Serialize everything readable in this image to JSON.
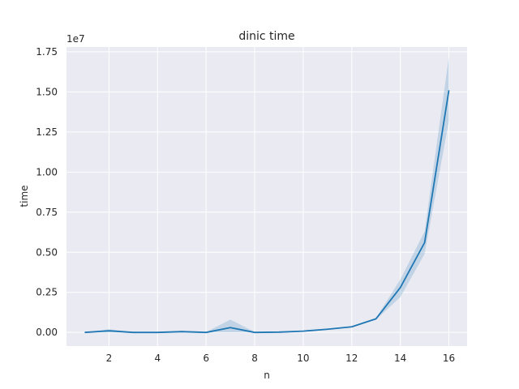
{
  "chart_data": {
    "type": "line",
    "title": "dinic time",
    "xlabel": "n",
    "ylabel": "time",
    "y_offset_label": "1e7",
    "xlim": [
      0.25,
      16.75
    ],
    "ylim": [
      -0.085,
      1.78
    ],
    "y_unit_multiplier": 10000000,
    "x_ticks": [
      2,
      4,
      6,
      8,
      10,
      12,
      14,
      16
    ],
    "x_tick_labels": [
      "2",
      "4",
      "6",
      "8",
      "10",
      "12",
      "14",
      "16"
    ],
    "y_ticks": [
      0.0,
      0.25,
      0.5,
      0.75,
      1.0,
      1.25,
      1.5,
      1.75
    ],
    "y_tick_labels": [
      "0.00",
      "0.25",
      "0.50",
      "0.75",
      "1.00",
      "1.25",
      "1.50",
      "1.75"
    ],
    "grid": true,
    "style": "seaborn-darkgrid",
    "colors": {
      "line": "#1f77b4",
      "band": "#1f77b4",
      "background": "#eaeaf2",
      "grid": "#ffffff"
    },
    "series": [
      {
        "x": [
          1,
          2,
          3,
          4,
          5,
          6,
          7,
          8,
          9,
          10,
          11,
          12,
          13,
          14,
          15,
          16
        ],
        "y": [
          0.0,
          0.01,
          0.0,
          0.0,
          0.005,
          0.0,
          0.03,
          0.0,
          0.002,
          0.008,
          0.02,
          0.035,
          0.085,
          0.28,
          0.56,
          1.51
        ],
        "ci_low": [
          0.0,
          0.0,
          0.0,
          0.0,
          0.0,
          0.0,
          0.0,
          0.0,
          0.0,
          0.006,
          0.017,
          0.032,
          0.08,
          0.22,
          0.49,
          1.32
        ],
        "ci_high": [
          0.002,
          0.02,
          0.001,
          0.002,
          0.01,
          0.002,
          0.08,
          0.003,
          0.005,
          0.01,
          0.023,
          0.038,
          0.09,
          0.33,
          0.63,
          1.72
        ]
      }
    ]
  }
}
